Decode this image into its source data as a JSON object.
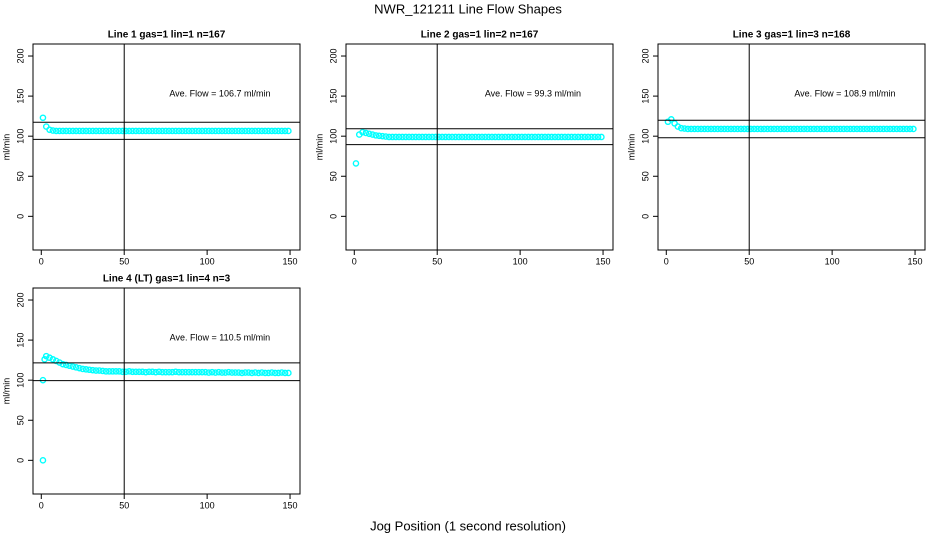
{
  "title": "NWR_121211  Line Flow Shapes",
  "xlabel": "Jog Position (1 second resolution)",
  "chart_data": [
    {
      "type": "scatter",
      "title": "Line 1 gas=1 lin=1 n=167",
      "annotation": "Ave. Flow =  106.7  ml/min",
      "ylabel": "ml/min",
      "color": "#00ffff",
      "xlim": [
        -5,
        156
      ],
      "ylim": [
        -42,
        215
      ],
      "xticks": [
        0,
        50,
        100,
        150
      ],
      "yticks": [
        0,
        50,
        100,
        150,
        200
      ],
      "hlines": [
        117.4,
        96
      ],
      "vlines": [
        50
      ],
      "x": [
        1,
        3,
        5,
        7,
        9,
        11,
        13,
        15,
        17,
        19,
        21,
        23,
        25,
        27,
        29,
        31,
        33,
        35,
        37,
        39,
        41,
        43,
        45,
        47,
        49,
        51,
        53,
        55,
        57,
        59,
        61,
        63,
        65,
        67,
        69,
        71,
        73,
        75,
        77,
        79,
        81,
        83,
        85,
        87,
        89,
        91,
        93,
        95,
        97,
        99,
        101,
        103,
        105,
        107,
        109,
        111,
        113,
        115,
        117,
        119,
        121,
        123,
        125,
        127,
        129,
        131,
        133,
        135,
        137,
        139,
        141,
        143,
        145,
        147,
        149
      ],
      "values": [
        123,
        112,
        108,
        107,
        106.5,
        106.5,
        106.5,
        106.5,
        106.5,
        106.5,
        106.5,
        106.5,
        106.5,
        106.5,
        106.5,
        106.5,
        106.5,
        106.5,
        106.5,
        106.5,
        106.5,
        106.5,
        106.5,
        106.5,
        106.5,
        106.5,
        106.5,
        106.5,
        106.5,
        106.5,
        106.5,
        106.5,
        106.5,
        106.5,
        106.5,
        106.5,
        106.5,
        106.5,
        106.5,
        106.5,
        106.5,
        106.5,
        106.5,
        106.5,
        106.5,
        106.5,
        106.5,
        106.5,
        106.5,
        106.5,
        106.5,
        106.5,
        106.5,
        106.5,
        106.5,
        106.5,
        106.5,
        106.5,
        106.5,
        106.5,
        106.5,
        106.5,
        106.5,
        106.5,
        106.5,
        106.5,
        106.5,
        106.5,
        106.5,
        106.5,
        106.5,
        106.5,
        106.5,
        106.5,
        106.5
      ]
    },
    {
      "type": "scatter",
      "title": "Line 2 gas=1 lin=2 n=167",
      "annotation": "Ave. Flow =  99.3  ml/min",
      "ylabel": "ml/min",
      "color": "#00ffff",
      "xlim": [
        -5,
        156
      ],
      "ylim": [
        -42,
        215
      ],
      "xticks": [
        0,
        50,
        100,
        150
      ],
      "yticks": [
        0,
        50,
        100,
        150,
        200
      ],
      "hlines": [
        109.2,
        89.4
      ],
      "vlines": [
        50
      ],
      "x": [
        1,
        3,
        5,
        7,
        9,
        11,
        13,
        15,
        17,
        19,
        21,
        23,
        25,
        27,
        29,
        31,
        33,
        35,
        37,
        39,
        41,
        43,
        45,
        47,
        49,
        51,
        53,
        55,
        57,
        59,
        61,
        63,
        65,
        67,
        69,
        71,
        73,
        75,
        77,
        79,
        81,
        83,
        85,
        87,
        89,
        91,
        93,
        95,
        97,
        99,
        101,
        103,
        105,
        107,
        109,
        111,
        113,
        115,
        117,
        119,
        121,
        123,
        125,
        127,
        129,
        131,
        133,
        135,
        137,
        139,
        141,
        143,
        145,
        147,
        149
      ],
      "values": [
        66,
        102,
        105,
        104,
        103,
        102,
        101,
        100.5,
        100,
        99.5,
        99,
        99,
        99,
        99,
        99,
        99,
        99,
        99,
        99,
        99,
        99,
        99,
        99,
        99,
        99,
        99,
        99,
        99,
        99,
        99,
        99,
        99,
        99,
        99,
        99,
        99,
        99,
        99,
        99,
        99,
        99,
        99,
        99,
        99,
        99,
        99,
        99,
        99,
        99,
        99,
        99,
        99,
        99,
        99,
        99,
        99,
        99,
        99,
        99,
        99,
        99,
        99,
        99,
        99,
        99,
        99,
        99,
        99,
        99,
        99,
        99,
        99,
        99,
        99,
        99
      ]
    },
    {
      "type": "scatter",
      "title": "Line 3 gas=1 lin=3 n=168",
      "annotation": "Ave. Flow =  108.9  ml/min",
      "ylabel": "ml/min",
      "color": "#00ffff",
      "xlim": [
        -5,
        156
      ],
      "ylim": [
        -42,
        215
      ],
      "xticks": [
        0,
        50,
        100,
        150
      ],
      "yticks": [
        0,
        50,
        100,
        150,
        200
      ],
      "hlines": [
        119.8,
        98
      ],
      "vlines": [
        50
      ],
      "x": [
        1,
        3,
        5,
        7,
        9,
        11,
        13,
        15,
        17,
        19,
        21,
        23,
        25,
        27,
        29,
        31,
        33,
        35,
        37,
        39,
        41,
        43,
        45,
        47,
        49,
        51,
        53,
        55,
        57,
        59,
        61,
        63,
        65,
        67,
        69,
        71,
        73,
        75,
        77,
        79,
        81,
        83,
        85,
        87,
        89,
        91,
        93,
        95,
        97,
        99,
        101,
        103,
        105,
        107,
        109,
        111,
        113,
        115,
        117,
        119,
        121,
        123,
        125,
        127,
        129,
        131,
        133,
        135,
        137,
        139,
        141,
        143,
        145,
        147,
        149
      ],
      "values": [
        118,
        121,
        116,
        112,
        110,
        109.5,
        109,
        109,
        109,
        109,
        109,
        109,
        109,
        109,
        109,
        109,
        109,
        109,
        109,
        109,
        109,
        109,
        109,
        109,
        109,
        109,
        109,
        109,
        109,
        109,
        109,
        109,
        109,
        109,
        109,
        109,
        109,
        109,
        109,
        109,
        109,
        109,
        109,
        109,
        109,
        109,
        109,
        109,
        109,
        109,
        109,
        109,
        109,
        109,
        109,
        109,
        109,
        109,
        109,
        109,
        109,
        109,
        109,
        109,
        109,
        109,
        109,
        109,
        109,
        109,
        109,
        109,
        109,
        109,
        109
      ]
    },
    {
      "type": "scatter",
      "title": "Line 4 (LT) gas=1 lin=4 n=3",
      "annotation": "Ave. Flow =  110.5  ml/min",
      "ylabel": "ml/min",
      "color": "#00ffff",
      "xlim": [
        -5,
        156
      ],
      "ylim": [
        -42,
        215
      ],
      "xticks": [
        0,
        50,
        100,
        150
      ],
      "yticks": [
        0,
        50,
        100,
        150,
        200
      ],
      "hlines": [
        121.6,
        99.5
      ],
      "vlines": [
        50
      ],
      "x": [
        1,
        1,
        2,
        3,
        5,
        7,
        9,
        11,
        13,
        15,
        17,
        19,
        21,
        23,
        25,
        27,
        29,
        31,
        33,
        35,
        37,
        39,
        41,
        43,
        45,
        47,
        49,
        51,
        53,
        55,
        57,
        59,
        61,
        63,
        65,
        67,
        69,
        71,
        73,
        75,
        77,
        79,
        81,
        83,
        85,
        87,
        89,
        91,
        93,
        95,
        97,
        99,
        101,
        103,
        105,
        107,
        109,
        111,
        113,
        115,
        117,
        119,
        121,
        123,
        125,
        127,
        129,
        131,
        133,
        135,
        137,
        139,
        141,
        143,
        145,
        147,
        149
      ],
      "values": [
        0,
        100,
        126,
        130,
        128,
        126,
        124,
        122,
        120,
        119,
        118,
        117,
        116,
        115,
        114,
        113.5,
        113,
        112.5,
        112,
        112,
        111.5,
        111,
        111,
        111,
        111,
        111,
        110.5,
        110.5,
        111,
        110.5,
        110.5,
        110.5,
        110.5,
        110,
        110.5,
        110.5,
        110,
        110.5,
        110,
        110,
        110,
        110,
        110.5,
        110,
        110,
        110,
        110,
        110,
        110,
        110,
        110,
        110,
        109.5,
        110,
        109.5,
        110,
        109.5,
        109.5,
        110,
        109.5,
        109.5,
        109.5,
        109,
        109.5,
        109.5,
        109,
        109.5,
        109,
        109.5,
        109,
        109,
        109.5,
        109,
        109,
        109.5,
        109,
        109
      ]
    }
  ]
}
